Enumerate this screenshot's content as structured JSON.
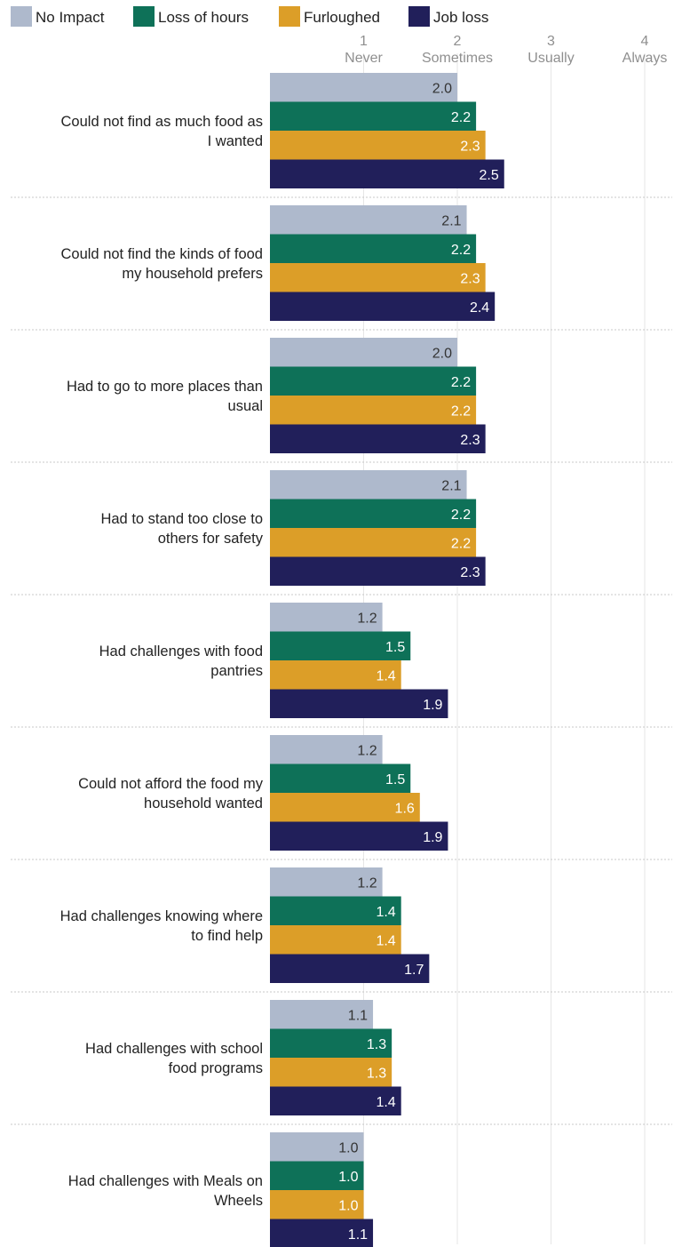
{
  "chart_data": {
    "type": "bar",
    "orientation": "horizontal",
    "title": "",
    "xlabel": "",
    "ylabel": "",
    "xlim": [
      0,
      4
    ],
    "x_ticks": [
      {
        "value": 1,
        "number": "1",
        "name": "Never"
      },
      {
        "value": 2,
        "number": "2",
        "name": "Sometimes"
      },
      {
        "value": 3,
        "number": "3",
        "name": "Usually"
      },
      {
        "value": 4,
        "number": "4",
        "name": "Always"
      }
    ],
    "grid": true,
    "legend": "top-left",
    "categories": [
      [
        "Could not find as much food as",
        "I wanted"
      ],
      [
        "Could not find the kinds of food",
        "my household prefers"
      ],
      [
        "Had to go to more places than",
        "usual"
      ],
      [
        "Had to stand too close to",
        "others for safety"
      ],
      [
        "Had challenges with food",
        "pantries"
      ],
      [
        "Could not afford the food my",
        "household wanted"
      ],
      [
        "Had challenges knowing where",
        "to find help"
      ],
      [
        "Had challenges with school",
        "food programs"
      ],
      [
        "Had challenges with Meals on",
        "Wheels"
      ]
    ],
    "series": [
      {
        "name": "No Impact",
        "color": "#aeb9cc",
        "label_color": "#333333",
        "values": [
          2.0,
          2.1,
          2.0,
          2.1,
          1.2,
          1.2,
          1.2,
          1.1,
          1.0
        ]
      },
      {
        "name": "Loss of hours",
        "color": "#0e7158",
        "label_color": "#ffffff",
        "values": [
          2.2,
          2.2,
          2.2,
          2.2,
          1.5,
          1.5,
          1.4,
          1.3,
          1.0
        ]
      },
      {
        "name": "Furloughed",
        "color": "#dc9e28",
        "label_color": "#ffffff",
        "values": [
          2.3,
          2.3,
          2.2,
          2.2,
          1.4,
          1.6,
          1.4,
          1.3,
          1.0
        ]
      },
      {
        "name": "Job loss",
        "color": "#211f5a",
        "label_color": "#ffffff",
        "values": [
          2.5,
          2.4,
          2.3,
          2.3,
          1.9,
          1.9,
          1.7,
          1.4,
          1.1
        ]
      }
    ]
  }
}
